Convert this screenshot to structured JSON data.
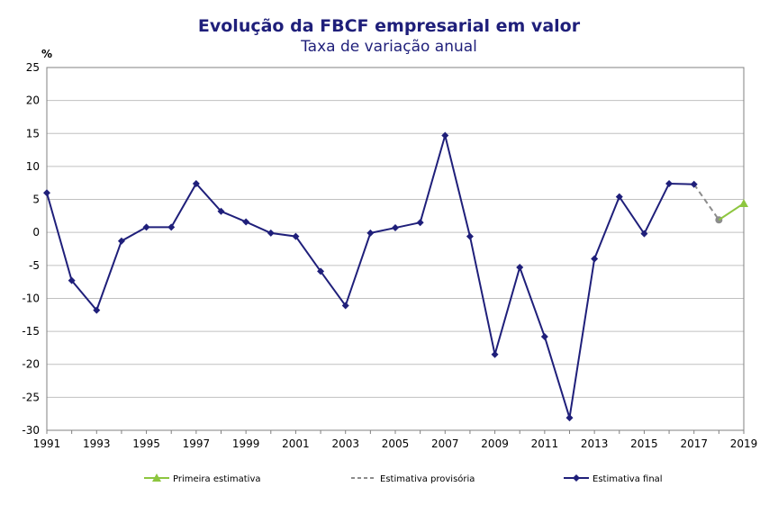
{
  "chart_data": {
    "type": "line",
    "title": "Evolução da FBCF empresarial  em valor",
    "subtitle": "Taxa de variação anual",
    "ylabel": "%",
    "xlabel": "",
    "xlim": [
      1991,
      2019
    ],
    "ylim": [
      -30,
      25
    ],
    "yticks": [
      25,
      20,
      15,
      10,
      5,
      0,
      -5,
      -10,
      -15,
      -20,
      -25,
      -30
    ],
    "xticks": [
      1991,
      1993,
      1995,
      1997,
      1999,
      2001,
      2003,
      2005,
      2007,
      2009,
      2011,
      2013,
      2015,
      2017,
      2019
    ],
    "grid": true,
    "legend_position": "bottom",
    "series": [
      {
        "name": "Primeira estimativa",
        "color": "#8dc63f",
        "style": "solid",
        "marker": "triangle",
        "x": [
          2018,
          2019
        ],
        "y": [
          1.9,
          4.4
        ]
      },
      {
        "name": "Estimativa provisória",
        "color": "#8c8c8c",
        "style": "dashed",
        "marker": "circle",
        "x": [
          2017,
          2018
        ],
        "y": [
          7.3,
          1.9
        ]
      },
      {
        "name": "Estimativa final",
        "color": "#1f1f7a",
        "style": "solid",
        "marker": "diamond",
        "x": [
          1991,
          1992,
          1993,
          1994,
          1995,
          1996,
          1997,
          1998,
          1999,
          2000,
          2001,
          2002,
          2003,
          2004,
          2005,
          2006,
          2007,
          2008,
          2009,
          2010,
          2011,
          2012,
          2013,
          2014,
          2015,
          2016,
          2017
        ],
        "y": [
          6.0,
          -7.3,
          -11.8,
          -1.3,
          0.8,
          0.8,
          7.4,
          3.2,
          1.6,
          -0.1,
          -0.6,
          -5.9,
          -11.1,
          -0.1,
          0.7,
          1.5,
          14.7,
          -0.6,
          -18.5,
          -5.3,
          -15.8,
          -28.1,
          -4.0,
          5.4,
          -0.2,
          7.4,
          7.3
        ]
      }
    ]
  }
}
